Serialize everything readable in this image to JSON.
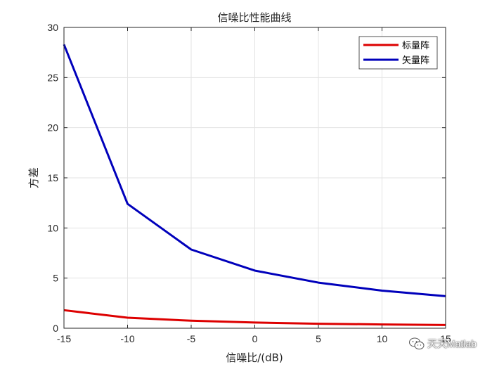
{
  "chart_data": {
    "type": "line",
    "title": "信噪比性能曲线",
    "xlabel": "信噪比/(dB)",
    "ylabel": "方差",
    "xlim": [
      -15,
      15
    ],
    "ylim": [
      0,
      30
    ],
    "xticks": [
      -15,
      -10,
      -5,
      0,
      5,
      10,
      15
    ],
    "yticks": [
      0,
      5,
      10,
      15,
      20,
      25,
      30
    ],
    "grid": true,
    "legend_position": "top-right",
    "x": [
      -15,
      -10,
      -5,
      0,
      5,
      10,
      15
    ],
    "series": [
      {
        "name": "标量阵",
        "color": "#dd0000",
        "values": [
          1.8,
          1.05,
          0.75,
          0.57,
          0.45,
          0.38,
          0.32
        ]
      },
      {
        "name": "矢量阵",
        "color": "#0000bb",
        "values": [
          28.3,
          12.4,
          7.85,
          5.75,
          4.55,
          3.75,
          3.2
        ]
      }
    ]
  },
  "watermark": {
    "text": "天天Matlab",
    "icon": "wechat-icon"
  }
}
